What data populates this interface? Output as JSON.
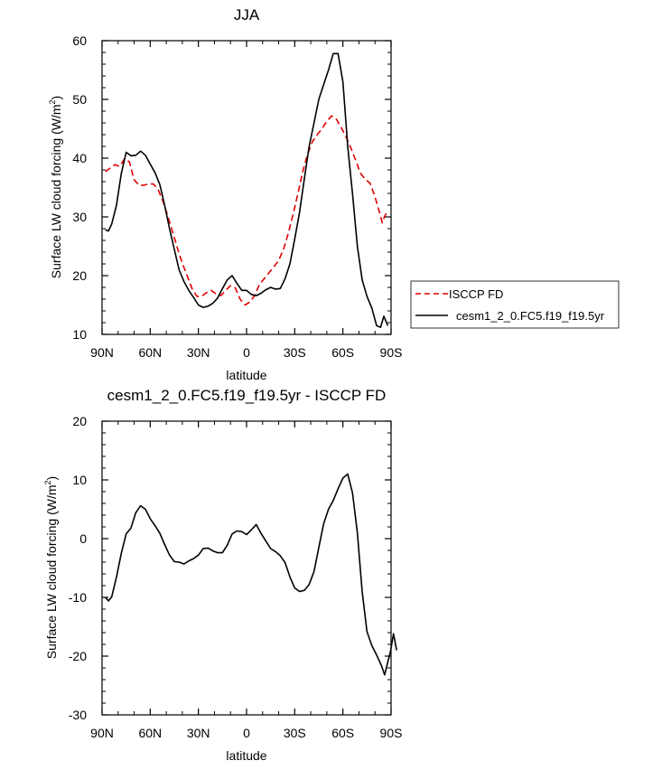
{
  "chart_data": [
    {
      "type": "line",
      "title": "JJA",
      "xlabel": "latitude",
      "ylabel": "Surface LW cloud forcing (W/m",
      "ylabel_sup": "2",
      "ylabel_close": ")",
      "xlim": [
        90,
        -90
      ],
      "ylim": [
        10,
        60
      ],
      "xtick_values": [
        90,
        60,
        30,
        0,
        -30,
        -60,
        -90
      ],
      "xtick_labels": [
        "90N",
        "60N",
        "30N",
        "0",
        "30S",
        "60S",
        "90S"
      ],
      "ytick_values": [
        10,
        20,
        30,
        40,
        50,
        60
      ],
      "ytick_labels": [
        "10",
        "20",
        "30",
        "40",
        "50",
        "60"
      ],
      "legend_position": "right",
      "legend": [
        "ISCCP FD",
        "cesm1_2_0.FC5.f19_f19.5yr"
      ],
      "series": [
        {
          "name": "ISCCP FD",
          "color": "#e00000",
          "dash": "dashed",
          "points": [
            [
              88,
              37.7
            ],
            [
              85,
              38.3
            ],
            [
              82,
              38.9
            ],
            [
              79,
              38.6
            ],
            [
              76,
              39.9
            ],
            [
              73,
              39.4
            ],
            [
              70,
              36.3
            ],
            [
              67,
              35.4
            ],
            [
              64,
              35.4
            ],
            [
              61,
              35.6
            ],
            [
              58,
              35.6
            ],
            [
              55,
              34.6
            ],
            [
              52,
              32.6
            ],
            [
              49,
              30.1
            ],
            [
              46,
              27.4
            ],
            [
              43,
              24.6
            ],
            [
              40,
              22.1
            ],
            [
              37,
              20.0
            ],
            [
              34,
              17.8
            ],
            [
              31,
              16.5
            ],
            [
              28,
              16.5
            ],
            [
              25,
              17.1
            ],
            [
              22,
              17.5
            ],
            [
              19,
              16.9
            ],
            [
              16,
              16.6
            ],
            [
              13,
              17.5
            ],
            [
              10,
              18.3
            ],
            [
              7,
              17.9
            ],
            [
              4,
              16.0
            ],
            [
              1,
              15.0
            ],
            [
              -2,
              15.5
            ],
            [
              -5,
              16.6
            ],
            [
              -8,
              18.5
            ],
            [
              -11,
              19.5
            ],
            [
              -14,
              20.5
            ],
            [
              -17,
              21.5
            ],
            [
              -20,
              22.6
            ],
            [
              -23,
              24.5
            ],
            [
              -26,
              27.2
            ],
            [
              -29,
              30.5
            ],
            [
              -32,
              34.0
            ],
            [
              -35,
              37.7
            ],
            [
              -38,
              40.7
            ],
            [
              -41,
              42.8
            ],
            [
              -44,
              44.0
            ],
            [
              -47,
              45.0
            ],
            [
              -50,
              46.3
            ],
            [
              -53,
              47.2
            ],
            [
              -56,
              46.6
            ],
            [
              -59,
              45.2
            ],
            [
              -62,
              43.6
            ],
            [
              -65,
              41.7
            ],
            [
              -68,
              39.6
            ],
            [
              -71,
              37.4
            ],
            [
              -74,
              36.4
            ],
            [
              -77,
              35.7
            ],
            [
              -80,
              33.4
            ],
            [
              -83,
              30.6
            ],
            [
              -84.5,
              29.0
            ],
            [
              -86,
              30.1
            ],
            [
              -88,
              31.0
            ]
          ]
        },
        {
          "name": "cesm1_2_0.FC5.f19_f19.5yr",
          "color": "#000000",
          "dash": "solid",
          "points": [
            [
              88,
              27.8
            ],
            [
              86,
              27.6
            ],
            [
              84,
              28.8
            ],
            [
              81,
              32.0
            ],
            [
              78,
              37.4
            ],
            [
              75,
              41.0
            ],
            [
              72,
              40.4
            ],
            [
              69,
              40.5
            ],
            [
              66,
              41.2
            ],
            [
              63,
              40.5
            ],
            [
              60,
              39.0
            ],
            [
              57,
              37.5
            ],
            [
              54,
              35.5
            ],
            [
              51,
              32.0
            ],
            [
              48,
              28.0
            ],
            [
              45,
              24.5
            ],
            [
              42,
              21.0
            ],
            [
              39,
              19.0
            ],
            [
              36,
              17.5
            ],
            [
              33,
              16.3
            ],
            [
              30,
              15.0
            ],
            [
              27,
              14.6
            ],
            [
              24,
              14.8
            ],
            [
              21,
              15.3
            ],
            [
              18,
              16.2
            ],
            [
              15,
              17.8
            ],
            [
              12,
              19.3
            ],
            [
              9,
              20.0
            ],
            [
              6,
              18.7
            ],
            [
              3,
              17.5
            ],
            [
              0,
              17.5
            ],
            [
              -3,
              16.8
            ],
            [
              -6,
              16.6
            ],
            [
              -9,
              17.0
            ],
            [
              -12,
              17.6
            ],
            [
              -15,
              18.0
            ],
            [
              -18,
              17.7
            ],
            [
              -21,
              17.8
            ],
            [
              -24,
              19.5
            ],
            [
              -27,
              22.0
            ],
            [
              -30,
              26.2
            ],
            [
              -33,
              30.8
            ],
            [
              -36,
              36.5
            ],
            [
              -39,
              42.0
            ],
            [
              -42,
              46.0
            ],
            [
              -45,
              50.0
            ],
            [
              -48,
              52.5
            ],
            [
              -51,
              55.0
            ],
            [
              -54,
              57.8
            ],
            [
              -57,
              57.8
            ],
            [
              -60,
              53.0
            ],
            [
              -63,
              42.0
            ],
            [
              -66,
              34.0
            ],
            [
              -69,
              25.0
            ],
            [
              -72,
              19.3
            ],
            [
              -75,
              16.5
            ],
            [
              -78,
              14.5
            ],
            [
              -81,
              11.5
            ],
            [
              -83.5,
              11.2
            ],
            [
              -85.5,
              13.1
            ],
            [
              -88,
              11.5
            ]
          ]
        }
      ]
    },
    {
      "type": "line",
      "title": "cesm1_2_0.FC5.f19_f19.5yr - ISCCP FD",
      "xlabel": "latitude",
      "ylabel": "Surface LW cloud forcing (W/m",
      "ylabel_sup": "2",
      "ylabel_close": ")",
      "xlim": [
        90,
        -90
      ],
      "ylim": [
        -30,
        20
      ],
      "xtick_values": [
        90,
        60,
        30,
        0,
        -30,
        -60,
        -90
      ],
      "xtick_labels": [
        "90N",
        "60N",
        "30N",
        "0",
        "30S",
        "60S",
        "90S"
      ],
      "ytick_values": [
        -30,
        -20,
        -10,
        0,
        10,
        20
      ],
      "ytick_labels": [
        "-30",
        "-20",
        "-10",
        "0",
        "10",
        "20"
      ],
      "series": [
        {
          "color": "#000000",
          "dash": "solid",
          "points": [
            [
              88,
              -10.0
            ],
            [
              86,
              -10.6
            ],
            [
              84,
              -9.9
            ],
            [
              81,
              -6.5
            ],
            [
              78,
              -2.5
            ],
            [
              75,
              0.8
            ],
            [
              72,
              1.8
            ],
            [
              69,
              4.4
            ],
            [
              66,
              5.6
            ],
            [
              63,
              5.0
            ],
            [
              60,
              3.4
            ],
            [
              57,
              2.2
            ],
            [
              54,
              0.9
            ],
            [
              51,
              -1.0
            ],
            [
              48,
              -2.8
            ],
            [
              45,
              -3.9
            ],
            [
              42,
              -4.0
            ],
            [
              39,
              -4.3
            ],
            [
              36,
              -3.8
            ],
            [
              33,
              -3.4
            ],
            [
              30,
              -2.8
            ],
            [
              27,
              -1.7
            ],
            [
              24,
              -1.6
            ],
            [
              21,
              -2.1
            ],
            [
              18,
              -2.4
            ],
            [
              15,
              -2.4
            ],
            [
              12,
              -1.1
            ],
            [
              9,
              0.8
            ],
            [
              6,
              1.3
            ],
            [
              3,
              1.2
            ],
            [
              0,
              0.7
            ],
            [
              -3,
              1.5
            ],
            [
              -6,
              2.4
            ],
            [
              -9,
              0.9
            ],
            [
              -12,
              -0.4
            ],
            [
              -15,
              -1.7
            ],
            [
              -18,
              -2.2
            ],
            [
              -21,
              -2.9
            ],
            [
              -24,
              -4.1
            ],
            [
              -27,
              -6.5
            ],
            [
              -30,
              -8.4
            ],
            [
              -33,
              -9.0
            ],
            [
              -36,
              -8.8
            ],
            [
              -39,
              -7.8
            ],
            [
              -42,
              -5.6
            ],
            [
              -45,
              -1.5
            ],
            [
              -48,
              2.5
            ],
            [
              -51,
              5.0
            ],
            [
              -54,
              6.5
            ],
            [
              -57,
              8.5
            ],
            [
              -60,
              10.3
            ],
            [
              -63,
              11.0
            ],
            [
              -66,
              7.8
            ],
            [
              -69,
              1.0
            ],
            [
              -72,
              -9.0
            ],
            [
              -75,
              -15.8
            ],
            [
              -78,
              -18.2
            ],
            [
              -81,
              -19.8
            ],
            [
              -84,
              -21.6
            ],
            [
              -86,
              -23.2
            ],
            [
              -88,
              -21.0
            ],
            [
              -89.5,
              -19.4
            ],
            [
              -91.5,
              -16.2
            ],
            [
              -93.5,
              -19.0
            ]
          ]
        }
      ]
    }
  ]
}
